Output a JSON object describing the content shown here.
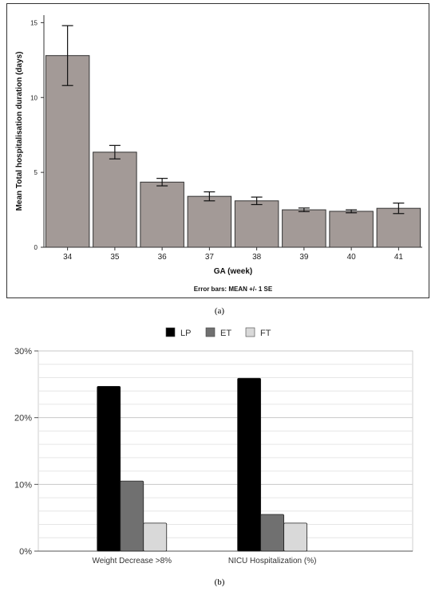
{
  "chart_data": [
    {
      "type": "bar",
      "ylabel": "Mean Total hospitalisation duration (days)",
      "xlabel": "GA (week)",
      "note": "Error bars: MEAN +/- 1 SE",
      "categories": [
        "34",
        "35",
        "36",
        "37",
        "38",
        "39",
        "40",
        "41"
      ],
      "values": [
        12.8,
        6.35,
        4.35,
        3.4,
        3.1,
        2.5,
        2.4,
        2.6
      ],
      "errors": [
        2.0,
        0.45,
        0.25,
        0.3,
        0.25,
        0.12,
        0.1,
        0.35
      ],
      "ylim": [
        0,
        15.5
      ],
      "yticks": [
        "0",
        "5",
        "10",
        "15"
      ],
      "yticks_values": [
        0,
        5,
        10,
        15
      ],
      "grid": false,
      "colors": {
        "bar": "#a39a97",
        "edge": "#333333"
      }
    },
    {
      "type": "bar",
      "categories": [
        "Weight Decrease >8%",
        "NICU Hospitalization (%)"
      ],
      "series": [
        {
          "name": "LP",
          "values": [
            24.7,
            25.9
          ],
          "color": "#000000"
        },
        {
          "name": "ET",
          "values": [
            10.5,
            5.5
          ],
          "color": "#707070"
        },
        {
          "name": "FT",
          "values": [
            4.2,
            4.2
          ],
          "color": "#d9d9d9"
        }
      ],
      "ylim": [
        0,
        30
      ],
      "yticks": [
        "0%",
        "10%",
        "20%",
        "30%"
      ],
      "yticks_values": [
        0,
        10,
        20,
        30
      ],
      "grid": true,
      "legend_position": "top-center"
    }
  ],
  "captions": {
    "a": "(a)",
    "b": "(b)"
  }
}
